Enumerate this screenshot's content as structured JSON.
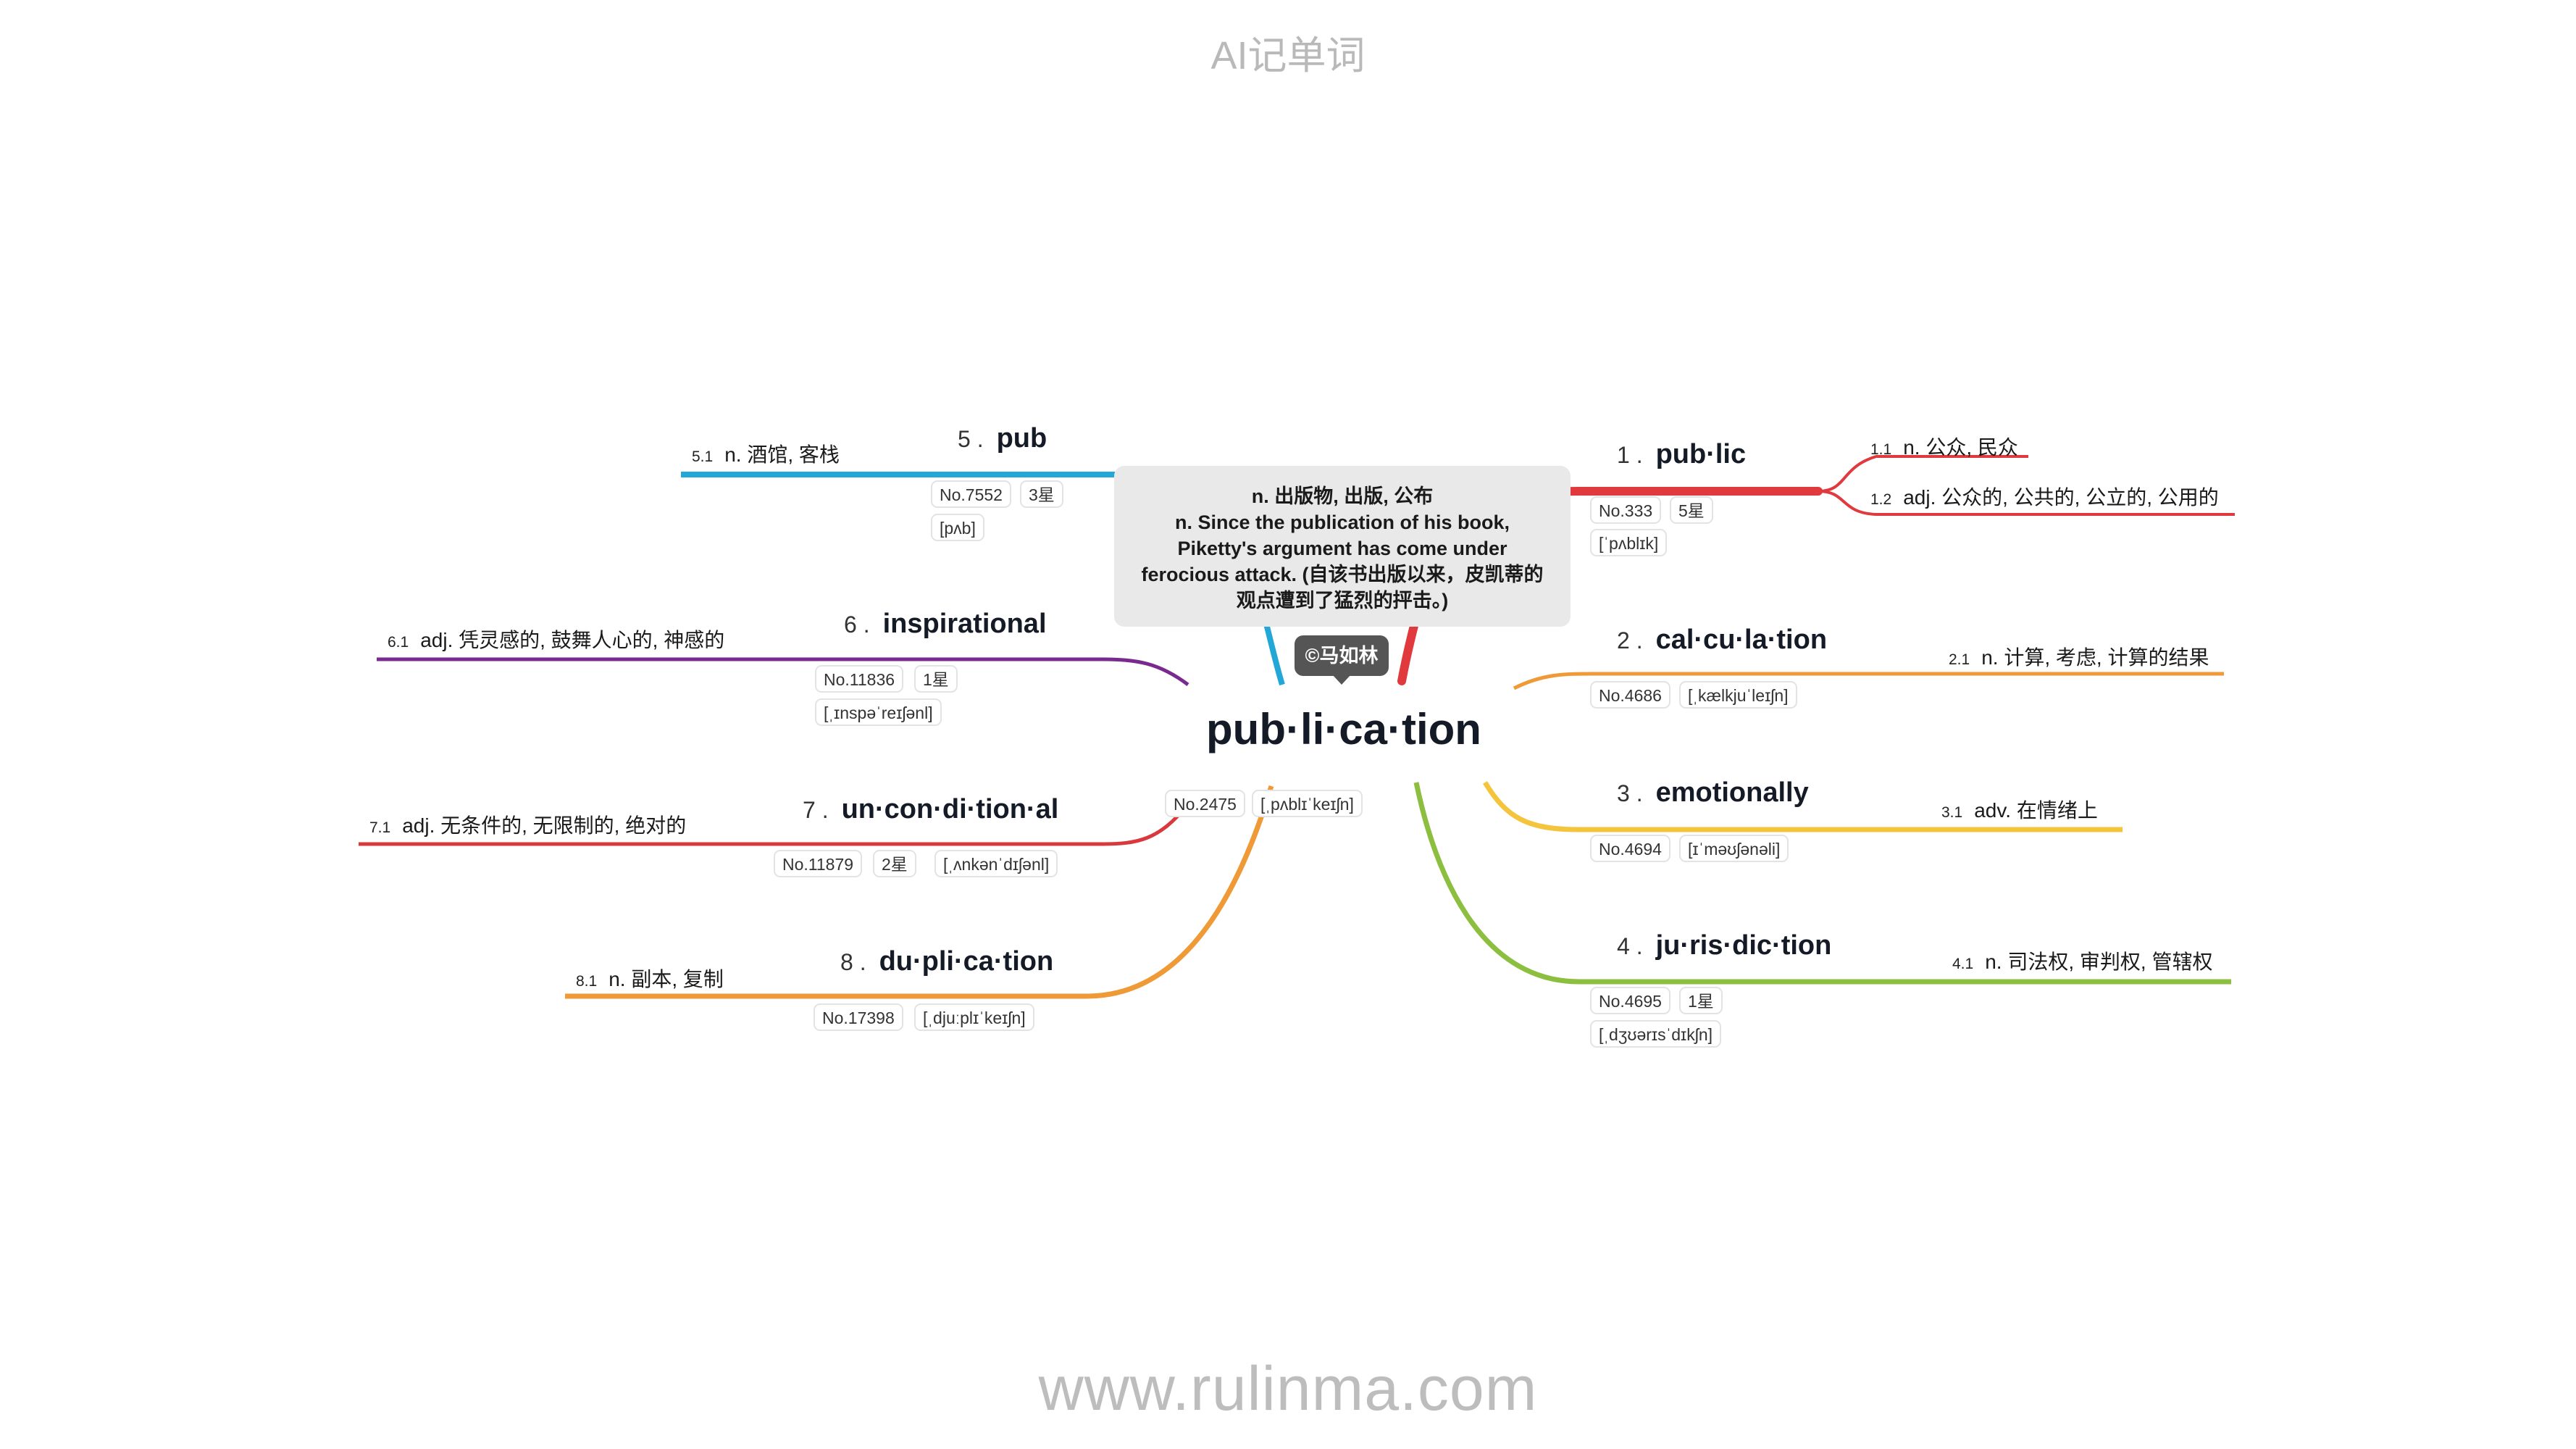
{
  "header": {
    "title": "AI记单词"
  },
  "footer": {
    "url": "www.rulinma.com"
  },
  "root": {
    "word": "pub·li·ca·tion",
    "no": "No.2475",
    "phonetic": "[ˌpʌblɪˈkeɪʃn]",
    "tooltip": {
      "line1": "n. 出版物, 出版, 公布",
      "line2": "n. Since the publication of his book,",
      "line3": "Piketty's argument has come under",
      "line4": "ferocious attack. (自该书出版以来，皮凯蒂的",
      "line5": "观点遭到了猛烈的抨击。)"
    },
    "credit": "©马如林"
  },
  "words": [
    {
      "num": "1 .",
      "word": "pub·lic",
      "no": "No.333",
      "star": "5星",
      "phonetic": "[ˈpʌblɪk]",
      "color": "#e0393e",
      "meanings": [
        {
          "num": "1.1",
          "text": "n. 公众, 民众"
        },
        {
          "num": "1.2",
          "text": "adj. 公众的, 公共的, 公立的, 公用的"
        }
      ]
    },
    {
      "num": "2 .",
      "word": "cal·cu·la·tion",
      "no": "No.4686",
      "phonetic": "[ˌkælkjuˈleɪʃn]",
      "color": "#ef9a36",
      "meanings": [
        {
          "num": "2.1",
          "text": "n. 计算, 考虑, 计算的结果"
        }
      ]
    },
    {
      "num": "3 .",
      "word": "emotionally",
      "no": "No.4694",
      "phonetic": "[ɪˈməʊʃənəli]",
      "color": "#f4c43c",
      "meanings": [
        {
          "num": "3.1",
          "text": "adv. 在情绪上"
        }
      ]
    },
    {
      "num": "4 .",
      "word": "ju·ris·dic·tion",
      "no": "No.4695",
      "star": "1星",
      "phonetic": "[ˌdʒʊərɪsˈdɪkʃn]",
      "color": "#8cbf3f",
      "meanings": [
        {
          "num": "4.1",
          "text": "n. 司法权, 审判权, 管辖权"
        }
      ]
    },
    {
      "num": "5 .",
      "word": "pub",
      "no": "No.7552",
      "star": "3星",
      "phonetic": "[pʌb]",
      "color": "#22a7d6",
      "meanings": [
        {
          "num": "5.1",
          "text": "n. 酒馆, 客栈"
        }
      ]
    },
    {
      "num": "6 .",
      "word": "inspirational",
      "no": "No.11836",
      "star": "1星",
      "phonetic": "[ˌɪnspəˈreɪʃənl]",
      "color": "#7a2a8f",
      "meanings": [
        {
          "num": "6.1",
          "text": "adj. 凭灵感的, 鼓舞人心的, 神感的"
        }
      ]
    },
    {
      "num": "7 .",
      "word": "un·con·di·tion·al",
      "no": "No.11879",
      "star": "2星",
      "phonetic": "[ˌʌnkənˈdɪʃənl]",
      "color": "#d9393c",
      "meanings": [
        {
          "num": "7.1",
          "text": "adj. 无条件的, 无限制的, 绝对的"
        }
      ]
    },
    {
      "num": "8 .",
      "word": "du·pli·ca·tion",
      "no": "No.17398",
      "phonetic": "[ˌdjuːplɪˈkeɪʃn]",
      "color": "#ef9a36",
      "meanings": [
        {
          "num": "8.1",
          "text": "n. 副本, 复制"
        }
      ]
    }
  ]
}
